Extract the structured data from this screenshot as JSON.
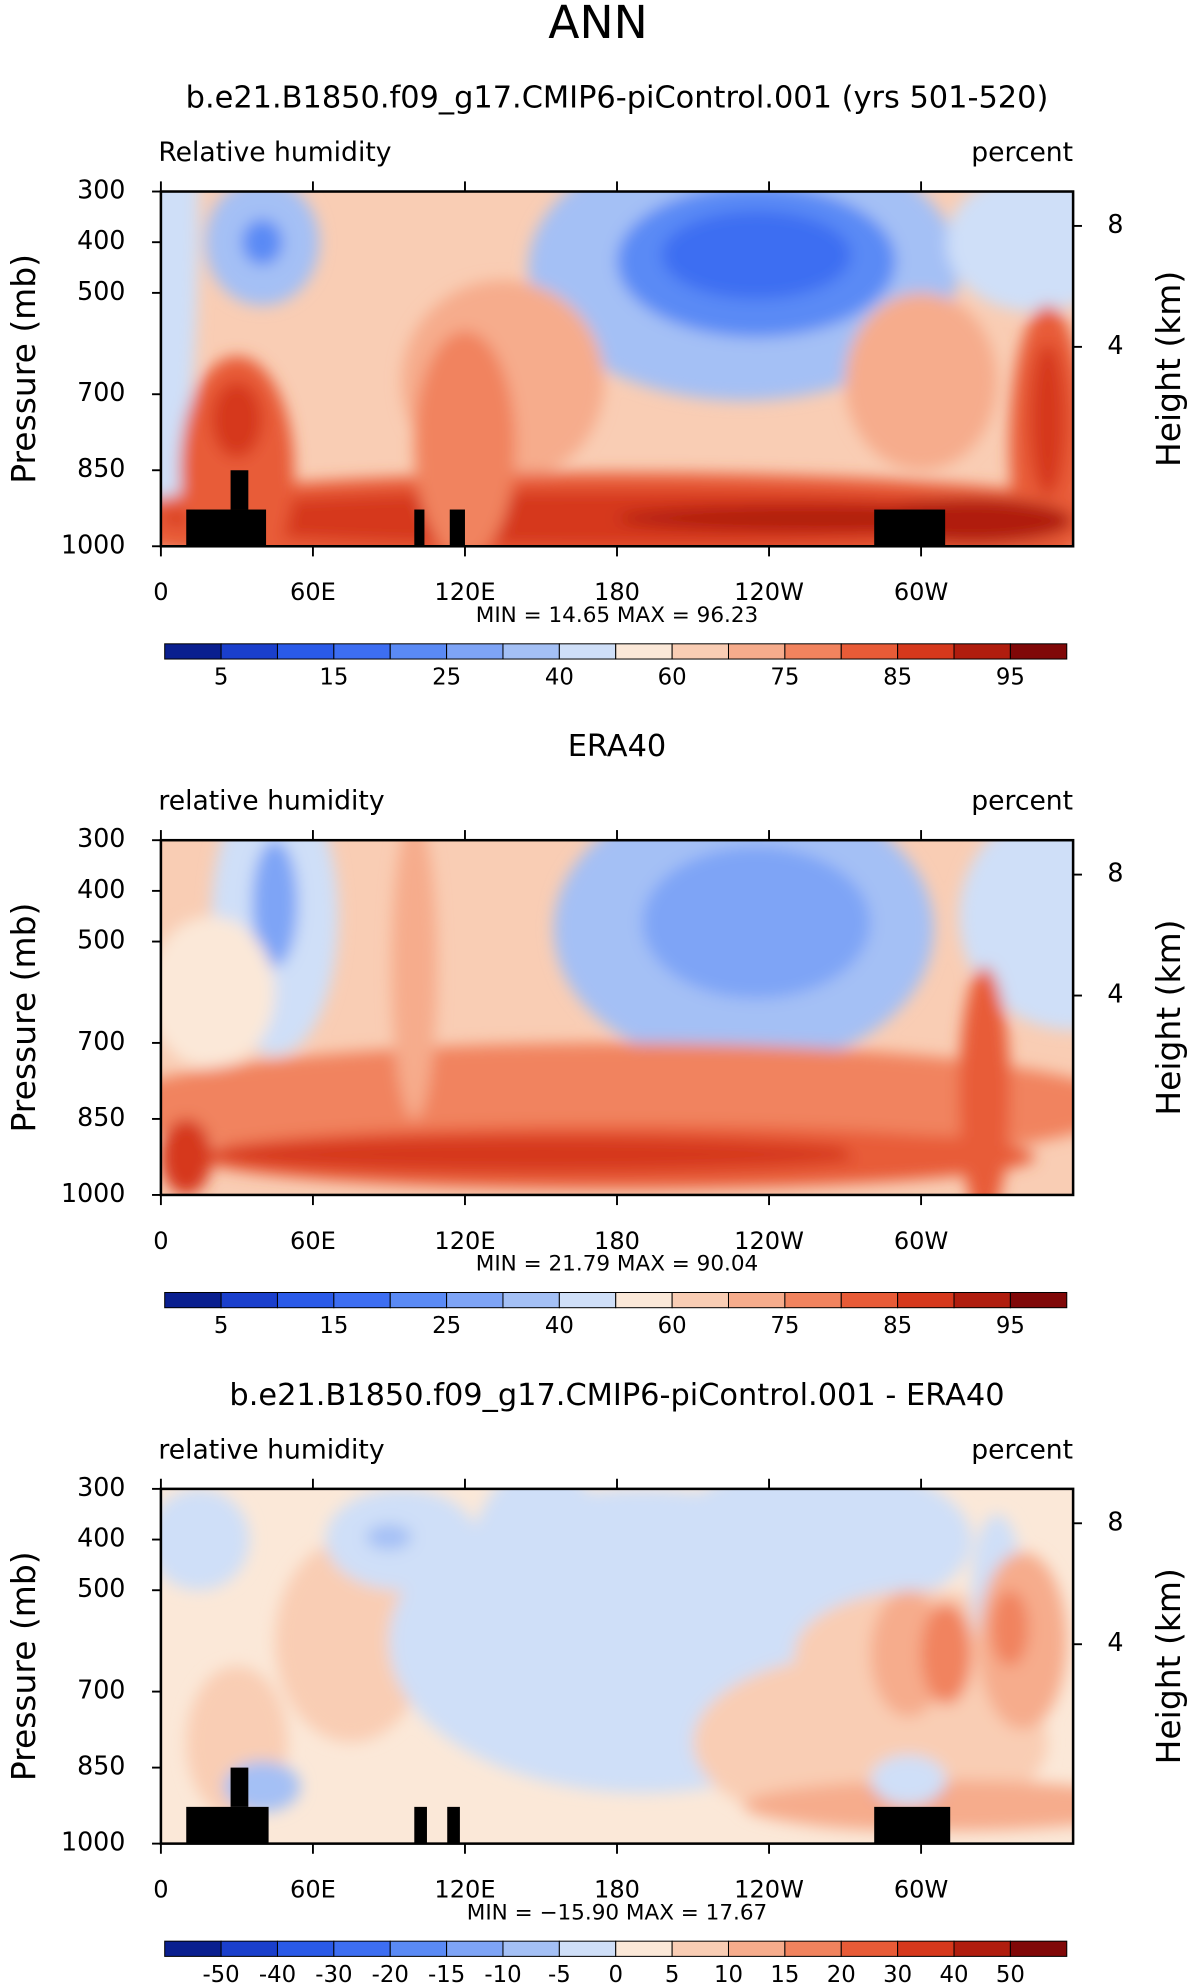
{
  "title": "ANN",
  "colorbar_colors": [
    "#0a1f8f",
    "#1a3fcc",
    "#2a5ae8",
    "#3d6ef2",
    "#5a8af5",
    "#7ea4f6",
    "#a4c0f5",
    "#cfdff8",
    "#fbe8d8",
    "#f9cdb4",
    "#f6ac8c",
    "#f1835e",
    "#e85b37",
    "#d6381c",
    "#b01d0e",
    "#800808"
  ],
  "panels": [
    {
      "title": "b.e21.B1850.f09_g17.CMIP6-piControl.001 (yrs 501-520)",
      "left_label": "Relative humidity",
      "right_label": "percent",
      "y_label": "Pressure (mb)",
      "y2_label": "Height (km)",
      "ylim": [
        300,
        1000
      ],
      "yticks": [
        300,
        400,
        500,
        700,
        850,
        1000
      ],
      "y2ticks": [
        8,
        4
      ],
      "xlim": [
        0,
        360
      ],
      "xticks": [
        0,
        {
          "value": 60,
          "label": "60E"
        },
        {
          "value": 120,
          "label": "120E"
        },
        180,
        {
          "value": 240,
          "label": "120W"
        },
        {
          "value": 300,
          "label": "60W"
        }
      ],
      "stats": "MIN =   14.65   MAX =   96.23",
      "colorbar_labels": [
        5,
        15,
        25,
        40,
        60,
        75,
        85,
        95
      ]
    },
    {
      "title": "ERA40",
      "left_label": "relative humidity",
      "right_label": "percent",
      "y_label": "Pressure (mb)",
      "y2_label": "Height (km)",
      "ylim": [
        300,
        1000
      ],
      "yticks": [
        300,
        400,
        500,
        700,
        850,
        1000
      ],
      "y2ticks": [
        8,
        4
      ],
      "xlim": [
        0,
        360
      ],
      "xticks": [
        0,
        {
          "value": 60,
          "label": "60E"
        },
        {
          "value": 120,
          "label": "120E"
        },
        180,
        {
          "value": 240,
          "label": "120W"
        },
        {
          "value": 300,
          "label": "60W"
        }
      ],
      "stats": "MIN =   21.79   MAX =   90.04",
      "colorbar_labels": [
        5,
        15,
        25,
        40,
        60,
        75,
        85,
        95
      ]
    },
    {
      "title": "b.e21.B1850.f09_g17.CMIP6-piControl.001 - ERA40",
      "left_label": "relative humidity",
      "right_label": "percent",
      "y_label": "Pressure (mb)",
      "y2_label": "Height (km)",
      "ylim": [
        300,
        1000
      ],
      "yticks": [
        300,
        400,
        500,
        700,
        850,
        1000
      ],
      "y2ticks": [
        8,
        4
      ],
      "xlim": [
        0,
        360
      ],
      "xticks": [
        0,
        {
          "value": 60,
          "label": "60E"
        },
        {
          "value": 120,
          "label": "120E"
        },
        180,
        {
          "value": 240,
          "label": "120W"
        },
        {
          "value": 300,
          "label": "60W"
        }
      ],
      "stats": "MIN = −15.90   MAX =   17.67",
      "colorbar_labels": [
        -50,
        -40,
        -30,
        -20,
        -15,
        -10,
        -5,
        0,
        5,
        10,
        15,
        20,
        30,
        40,
        50
      ]
    }
  ]
}
